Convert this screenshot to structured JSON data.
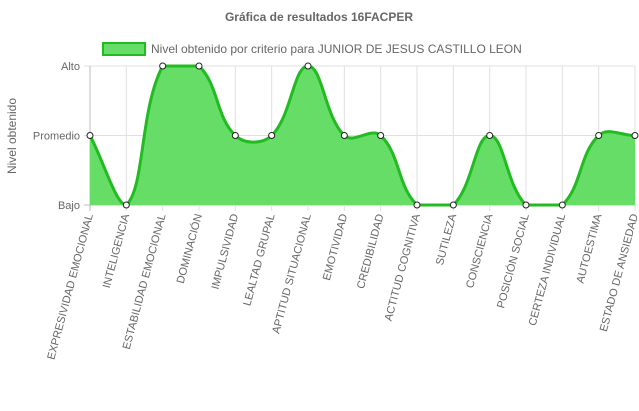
{
  "chart_data": {
    "type": "area",
    "title": "Gráfica de resultados 16FACPER",
    "ylabel": "Nivel obtenido",
    "xlabel": "",
    "y_categories": [
      "Bajo",
      "Promedio",
      "Alto"
    ],
    "ylim": [
      0,
      2
    ],
    "legend_position": "top",
    "grid": true,
    "categories": [
      "EXPRESIVIDAD EMOCIONAL",
      "INTELIGENCIA",
      "ESTABILIDAD EMOCIONAL",
      "DOMINACIÓN",
      "IMPULSIVIDAD",
      "LEALTAD GRUPAL",
      "APTITUD SITUACIONAL",
      "EMOTIVIDAD",
      "CREDIBILIDAD",
      "ACTITUD COGNITIVA",
      "SUTILEZA",
      "CONSCIENCIA",
      "POSICIÓN SOCIAL",
      "CERTEZA INDIVIDUAL",
      "AUTOESTIMA",
      "ESTADO DE ANSIEDAD"
    ],
    "series": [
      {
        "name": "Nivel obtenido por criterio para JUNIOR DE JESUS CASTILLO LEON",
        "values": [
          1,
          0,
          2,
          2,
          1,
          1,
          2,
          1,
          1,
          0,
          0,
          1,
          0,
          0,
          1,
          1
        ],
        "fill_color": "#66dd66",
        "line_color": "#22bb22"
      }
    ]
  }
}
